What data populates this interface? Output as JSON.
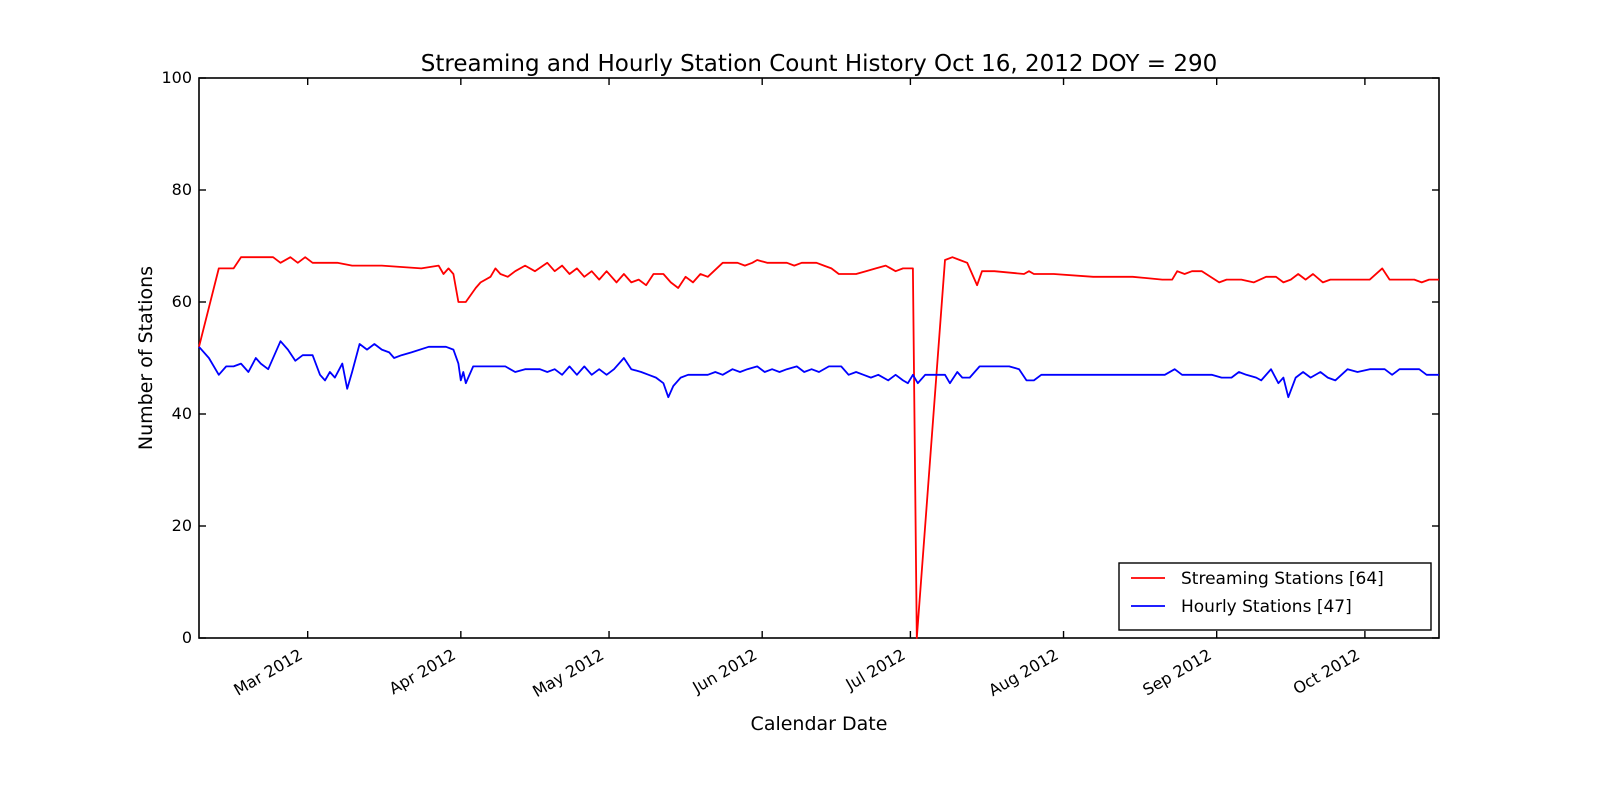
{
  "figure": {
    "title": "Streaming and Hourly Station Count History Oct 16, 2012 DOY = 290",
    "xlabel": "Calendar Date",
    "ylabel": "Number of Stations"
  },
  "legend": {
    "position": "lower right",
    "entries": [
      {
        "label": "Streaming Stations [64]",
        "color": "#ff0000"
      },
      {
        "label": "Hourly Stations [47]",
        "color": "#0000ff"
      }
    ]
  },
  "chart_data": {
    "type": "line",
    "title": "Streaming and Hourly Station Count History Oct 16, 2012 DOY = 290",
    "xlabel": "Calendar Date",
    "ylabel": "Number of Stations",
    "grid": false,
    "legend_position": "lower right",
    "x_axis": {
      "unit": "day_of_year_2012",
      "range": [
        39,
        290
      ],
      "ticks": [
        {
          "doy": 61,
          "label": "Mar 2012"
        },
        {
          "doy": 92,
          "label": "Apr 2012"
        },
        {
          "doy": 122,
          "label": "May 2012"
        },
        {
          "doy": 153,
          "label": "Jun 2012"
        },
        {
          "doy": 183,
          "label": "Jul 2012"
        },
        {
          "doy": 214,
          "label": "Aug 2012"
        },
        {
          "doy": 245,
          "label": "Sep 2012"
        },
        {
          "doy": 275,
          "label": "Oct 2012"
        }
      ]
    },
    "y_axis": {
      "range": [
        0,
        100
      ],
      "ticks": [
        0,
        20,
        40,
        60,
        80,
        100
      ]
    },
    "series": [
      {
        "name": "Streaming Stations [64]",
        "color": "#ff0000",
        "points": [
          [
            39,
            52
          ],
          [
            43,
            66
          ],
          [
            46,
            66
          ],
          [
            47.5,
            68
          ],
          [
            54,
            68
          ],
          [
            55.5,
            67
          ],
          [
            57.5,
            68
          ],
          [
            59,
            67
          ],
          [
            60.5,
            68
          ],
          [
            62,
            67
          ],
          [
            67,
            67
          ],
          [
            70,
            66.5
          ],
          [
            76,
            66.5
          ],
          [
            84,
            66
          ],
          [
            87.5,
            66.5
          ],
          [
            88.5,
            65
          ],
          [
            89.5,
            66
          ],
          [
            90.5,
            65
          ],
          [
            91.5,
            60
          ],
          [
            93,
            60
          ],
          [
            95,
            62.5
          ],
          [
            96,
            63.5
          ],
          [
            98,
            64.5
          ],
          [
            99,
            66
          ],
          [
            100,
            65
          ],
          [
            101.5,
            64.5
          ],
          [
            103,
            65.5
          ],
          [
            105,
            66.5
          ],
          [
            107,
            65.5
          ],
          [
            109.5,
            67
          ],
          [
            111,
            65.5
          ],
          [
            112.5,
            66.5
          ],
          [
            114,
            65
          ],
          [
            115.5,
            66
          ],
          [
            117,
            64.5
          ],
          [
            118.5,
            65.5
          ],
          [
            120,
            64
          ],
          [
            121.5,
            65.5
          ],
          [
            123.5,
            63.5
          ],
          [
            125,
            65
          ],
          [
            126.5,
            63.5
          ],
          [
            128,
            64
          ],
          [
            129.5,
            63
          ],
          [
            131,
            65
          ],
          [
            133,
            65
          ],
          [
            134.5,
            63.5
          ],
          [
            136,
            62.5
          ],
          [
            137.5,
            64.5
          ],
          [
            139,
            63.5
          ],
          [
            140.5,
            65
          ],
          [
            142,
            64.5
          ],
          [
            145,
            67
          ],
          [
            148,
            67
          ],
          [
            149.5,
            66.5
          ],
          [
            151,
            67
          ],
          [
            152,
            67.5
          ],
          [
            154,
            67
          ],
          [
            158,
            67
          ],
          [
            159.5,
            66.5
          ],
          [
            161,
            67
          ],
          [
            164,
            67
          ],
          [
            165.5,
            66.5
          ],
          [
            167,
            66
          ],
          [
            168.5,
            65
          ],
          [
            172,
            65
          ],
          [
            174,
            65.5
          ],
          [
            176,
            66
          ],
          [
            178,
            66.5
          ],
          [
            180,
            65.5
          ],
          [
            181.5,
            66
          ],
          [
            183.5,
            66
          ],
          [
            184.3,
            0
          ],
          [
            190,
            67.5
          ],
          [
            191.5,
            68
          ],
          [
            193,
            67.5
          ],
          [
            194.5,
            67
          ],
          [
            196.5,
            63
          ],
          [
            197.5,
            65.5
          ],
          [
            200,
            65.5
          ],
          [
            206,
            65
          ],
          [
            207,
            65.5
          ],
          [
            208,
            65
          ],
          [
            212,
            65
          ],
          [
            220,
            64.5
          ],
          [
            228,
            64.5
          ],
          [
            234,
            64
          ],
          [
            236,
            64
          ],
          [
            237,
            65.5
          ],
          [
            238.5,
            65
          ],
          [
            240,
            65.5
          ],
          [
            242,
            65.5
          ],
          [
            245.5,
            63.5
          ],
          [
            247,
            64
          ],
          [
            250,
            64
          ],
          [
            252.5,
            63.5
          ],
          [
            255,
            64.5
          ],
          [
            257,
            64.5
          ],
          [
            258.5,
            63.5
          ],
          [
            260,
            64
          ],
          [
            261.5,
            65
          ],
          [
            263,
            64
          ],
          [
            264.5,
            65
          ],
          [
            266.5,
            63.5
          ],
          [
            268,
            64
          ],
          [
            276,
            64
          ],
          [
            278.5,
            66
          ],
          [
            280,
            64
          ],
          [
            285,
            64
          ],
          [
            286.5,
            63.5
          ],
          [
            288,
            64
          ],
          [
            290,
            64
          ]
        ]
      },
      {
        "name": "Hourly Stations [47]",
        "color": "#0000ff",
        "points": [
          [
            39,
            52
          ],
          [
            41,
            50
          ],
          [
            43,
            47
          ],
          [
            44.5,
            48.5
          ],
          [
            46,
            48.5
          ],
          [
            47.5,
            49
          ],
          [
            49,
            47.5
          ],
          [
            50.5,
            50
          ],
          [
            51.5,
            49
          ],
          [
            53,
            48
          ],
          [
            55.5,
            53
          ],
          [
            57,
            51.5
          ],
          [
            58.5,
            49.5
          ],
          [
            60,
            50.5
          ],
          [
            62,
            50.5
          ],
          [
            63.5,
            47
          ],
          [
            64.5,
            46
          ],
          [
            65.5,
            47.5
          ],
          [
            66.5,
            46.5
          ],
          [
            68,
            49
          ],
          [
            69,
            44.5
          ],
          [
            70,
            47.5
          ],
          [
            71.5,
            52.5
          ],
          [
            73,
            51.5
          ],
          [
            74.5,
            52.5
          ],
          [
            76,
            51.5
          ],
          [
            77.5,
            51
          ],
          [
            78.5,
            50
          ],
          [
            80,
            50.5
          ],
          [
            82,
            51
          ],
          [
            85.5,
            52
          ],
          [
            89,
            52
          ],
          [
            90.5,
            51.5
          ],
          [
            91.5,
            49
          ],
          [
            92,
            46
          ],
          [
            92.5,
            47.5
          ],
          [
            93,
            45.5
          ],
          [
            94.5,
            48.5
          ],
          [
            101,
            48.5
          ],
          [
            103,
            47.5
          ],
          [
            105,
            48
          ],
          [
            108,
            48
          ],
          [
            109.5,
            47.5
          ],
          [
            111,
            48
          ],
          [
            112.5,
            47
          ],
          [
            114,
            48.5
          ],
          [
            115.5,
            47
          ],
          [
            117,
            48.5
          ],
          [
            118.5,
            47
          ],
          [
            120,
            48
          ],
          [
            121.5,
            47
          ],
          [
            123,
            48
          ],
          [
            125,
            50
          ],
          [
            126.5,
            48
          ],
          [
            128.5,
            47.5
          ],
          [
            130,
            47
          ],
          [
            131.5,
            46.5
          ],
          [
            133,
            45.5
          ],
          [
            134,
            43
          ],
          [
            135,
            45
          ],
          [
            136.5,
            46.5
          ],
          [
            138,
            47
          ],
          [
            142,
            47
          ],
          [
            143.5,
            47.5
          ],
          [
            145,
            47
          ],
          [
            147,
            48
          ],
          [
            148.5,
            47.5
          ],
          [
            150,
            48
          ],
          [
            152,
            48.5
          ],
          [
            153.5,
            47.5
          ],
          [
            155,
            48
          ],
          [
            156.5,
            47.5
          ],
          [
            158,
            48
          ],
          [
            160,
            48.5
          ],
          [
            161.5,
            47.5
          ],
          [
            163,
            48
          ],
          [
            164.5,
            47.5
          ],
          [
            166.5,
            48.5
          ],
          [
            169,
            48.5
          ],
          [
            170.5,
            47
          ],
          [
            172,
            47.5
          ],
          [
            173.5,
            47
          ],
          [
            175,
            46.5
          ],
          [
            176.5,
            47
          ],
          [
            178.5,
            46
          ],
          [
            180,
            47
          ],
          [
            181.5,
            46
          ],
          [
            182.5,
            45.5
          ],
          [
            183.5,
            47
          ],
          [
            184.5,
            45.5
          ],
          [
            186,
            47
          ],
          [
            190,
            47
          ],
          [
            191,
            45.5
          ],
          [
            192.5,
            47.5
          ],
          [
            193.5,
            46.5
          ],
          [
            195,
            46.5
          ],
          [
            197,
            48.5
          ],
          [
            200,
            48.5
          ],
          [
            203,
            48.5
          ],
          [
            205,
            48
          ],
          [
            206.5,
            46
          ],
          [
            208,
            46
          ],
          [
            209.5,
            47
          ],
          [
            220,
            47
          ],
          [
            230,
            47
          ],
          [
            234.5,
            47
          ],
          [
            236.5,
            48
          ],
          [
            238,
            47
          ],
          [
            244,
            47
          ],
          [
            246,
            46.5
          ],
          [
            248,
            46.5
          ],
          [
            249.5,
            47.5
          ],
          [
            251,
            47
          ],
          [
            253,
            46.5
          ],
          [
            254,
            46
          ],
          [
            256,
            48
          ],
          [
            257.5,
            45.5
          ],
          [
            258.5,
            46.5
          ],
          [
            259.5,
            43
          ],
          [
            261,
            46.5
          ],
          [
            262.5,
            47.5
          ],
          [
            264,
            46.5
          ],
          [
            266,
            47.5
          ],
          [
            267.5,
            46.5
          ],
          [
            269,
            46
          ],
          [
            271.5,
            48
          ],
          [
            273.5,
            47.5
          ],
          [
            276,
            48
          ],
          [
            279,
            48
          ],
          [
            280.5,
            47
          ],
          [
            282,
            48
          ],
          [
            286,
            48
          ],
          [
            287.5,
            47
          ],
          [
            290,
            47
          ]
        ]
      }
    ]
  }
}
